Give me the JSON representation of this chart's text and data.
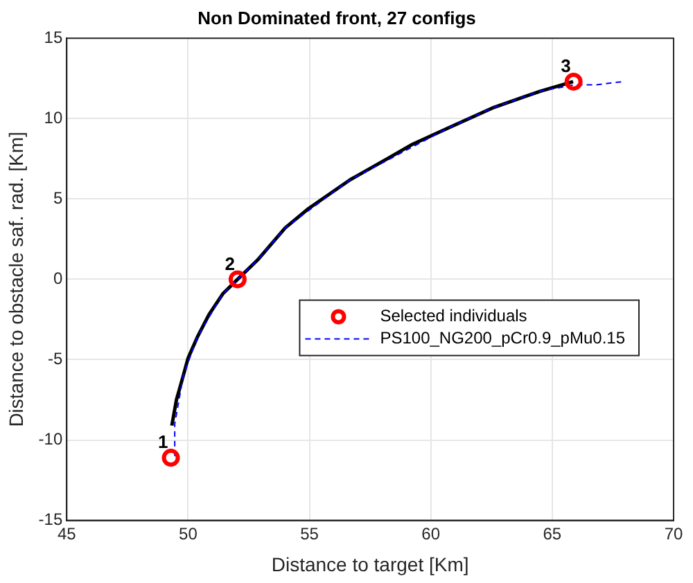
{
  "chart_data": {
    "type": "line",
    "title": "Non Dominated front, 27 configs",
    "xlabel": "Distance to target [Km]",
    "ylabel": "Distance to obstacle saf. rad. [Km]",
    "xlim": [
      45,
      70
    ],
    "ylim": [
      -15,
      15
    ],
    "xticks": [
      45,
      50,
      55,
      60,
      65,
      70
    ],
    "yticks": [
      -15,
      -10,
      -5,
      0,
      5,
      10,
      15
    ],
    "grid": true,
    "legend": "right",
    "series": [
      {
        "type": "line",
        "color": "#000000",
        "marker": "none",
        "line_style": "solid",
        "x": [
          49.33,
          49.52,
          49.8,
          50,
          50.38,
          50.86,
          51.43,
          52.04,
          52.86,
          54.0,
          54.96,
          56.68,
          58.2,
          59.24,
          60.69,
          62.6,
          64.5,
          65.86
        ],
        "values": [
          -9.1,
          -7.5,
          -6.0,
          -4.9,
          -3.6,
          -2.2,
          -0.9,
          0,
          1.2,
          3.2,
          4.4,
          6.2,
          7.5,
          8.4,
          9.4,
          10.7,
          11.7,
          12.3
        ]
      },
      {
        "type": "line",
        "name": "PS100_NG200_pCr0.9_pMu0.15",
        "color": "#0000ff",
        "marker": "none",
        "line_style": "dashed",
        "x": [
          49.45,
          49.45,
          49.8,
          50.38,
          51.43,
          52.04,
          52.86,
          54.0,
          56.68,
          58.2,
          60.69,
          62.6,
          64.5,
          65.9,
          66.8,
          67.9
        ],
        "values": [
          -11.0,
          -9.0,
          -6.0,
          -3.6,
          -0.9,
          0,
          1.2,
          3.2,
          6.2,
          7.4,
          9.4,
          10.7,
          11.7,
          12.1,
          12.1,
          12.3
        ]
      },
      {
        "type": "scatter",
        "name": "Selected individuals",
        "color": "#ff0000",
        "marker": "circle",
        "x": [
          49.29,
          52.04,
          65.88
        ],
        "values": [
          -11.1,
          0,
          12.3
        ]
      }
    ],
    "annotations": [
      {
        "text": "1",
        "x": 49.29,
        "y": -11.1
      },
      {
        "text": "2",
        "x": 52.04,
        "y": 0
      },
      {
        "text": "3",
        "x": 65.88,
        "y": 12.3
      }
    ]
  }
}
